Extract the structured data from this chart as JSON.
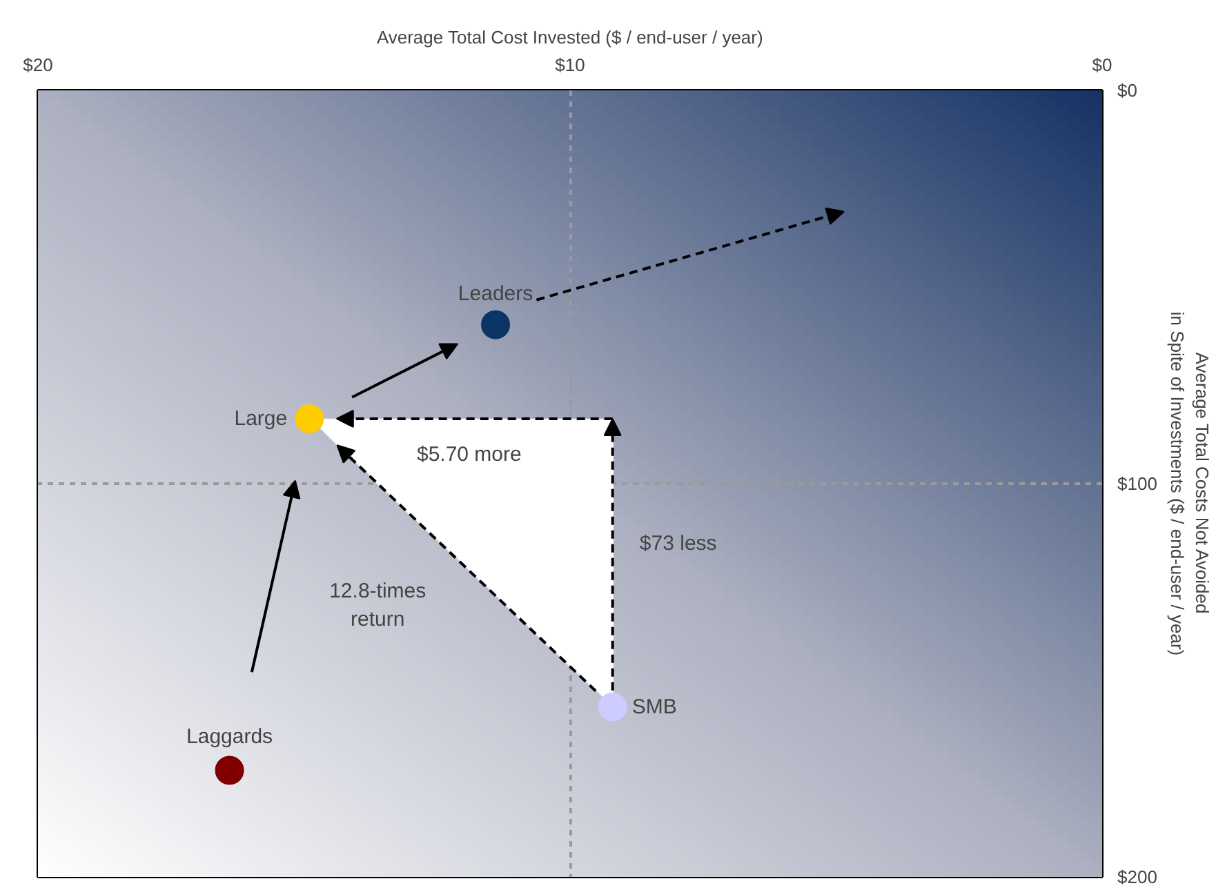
{
  "chart_data": {
    "type": "scatter",
    "xlabel": "Average Total Cost Invested ($ / end-user / year)",
    "ylabel": "Average Total Costs Not Avoided\nin Spite of Investments ($ / end-user / year)",
    "xlim": [
      20,
      0
    ],
    "ylim": [
      200,
      0
    ],
    "xticks": [
      {
        "value": 20,
        "label": "$20"
      },
      {
        "value": 10,
        "label": "$10"
      },
      {
        "value": 0,
        "label": "$0"
      }
    ],
    "yticks": [
      {
        "value": 0,
        "label": "$0"
      },
      {
        "value": 100,
        "label": "$100"
      },
      {
        "value": 200,
        "label": "$200"
      }
    ],
    "grid": true,
    "marker": "circle",
    "series": [
      {
        "name": "Leaders",
        "color": "#0a3566",
        "x": [
          11.4
        ],
        "values": [
          59.6
        ]
      },
      {
        "name": "Large",
        "color": "#ffcc00",
        "x": [
          14.9
        ],
        "values": [
          83.5
        ]
      },
      {
        "name": "SMB",
        "color": "#ccccff",
        "x": [
          9.2
        ],
        "values": [
          156.8
        ]
      },
      {
        "name": "Laggards",
        "color": "#800000",
        "x": [
          16.4
        ],
        "values": [
          172.9
        ]
      }
    ],
    "annotations": [
      "$5.70 more",
      "$73 less",
      "12.8-times\nreturn"
    ]
  }
}
